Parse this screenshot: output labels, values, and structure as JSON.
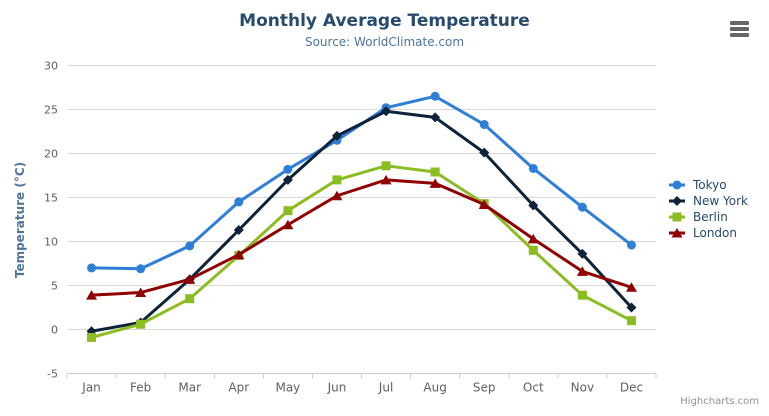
{
  "header": {
    "title": "Monthly Average Temperature",
    "subtitle": "Source: WorldClimate.com"
  },
  "toolbar": {
    "menu_icon": "hamburger-menu"
  },
  "footer": {
    "credit": "Highcharts.com"
  },
  "colors": {
    "title": "#274b6d",
    "subtitle": "#4d759e",
    "y_axis_title": "#4d759e",
    "axis_labels": "#606060",
    "grid_line": "#d8d8d8",
    "axis_line": "#c0d0e0",
    "legend_text": "#274b6d",
    "credit_text": "#909090",
    "menu_icon": "#666666",
    "background": "#ffffff"
  },
  "chart_data": {
    "type": "line",
    "title": "Monthly Average Temperature",
    "subtitle": "Source: WorldClimate.com",
    "xlabel": "",
    "ylabel": "Temperature (°C)",
    "categories": [
      "Jan",
      "Feb",
      "Mar",
      "Apr",
      "May",
      "Jun",
      "Jul",
      "Aug",
      "Sep",
      "Oct",
      "Nov",
      "Dec"
    ],
    "series": [
      {
        "name": "Tokyo",
        "color": "#2f7ed8",
        "marker": "circle",
        "values": [
          7.0,
          6.9,
          9.5,
          14.5,
          18.2,
          21.5,
          25.2,
          26.5,
          23.3,
          18.3,
          13.9,
          9.6
        ]
      },
      {
        "name": "New York",
        "color": "#0d233a",
        "marker": "diamond",
        "values": [
          -0.2,
          0.8,
          5.7,
          11.3,
          17.0,
          22.0,
          24.8,
          24.1,
          20.1,
          14.1,
          8.6,
          2.5
        ]
      },
      {
        "name": "Berlin",
        "color": "#8bbc21",
        "marker": "square",
        "values": [
          -0.9,
          0.6,
          3.5,
          8.4,
          13.5,
          17.0,
          18.6,
          17.9,
          14.3,
          9.0,
          3.9,
          1.0
        ]
      },
      {
        "name": "London",
        "color": "#910000",
        "marker": "triangle",
        "values": [
          3.9,
          4.2,
          5.7,
          8.5,
          11.9,
          15.2,
          17.0,
          16.6,
          14.2,
          10.3,
          6.6,
          4.8
        ]
      }
    ],
    "ylim": [
      -5,
      30
    ],
    "ytick_step": 5,
    "grid": true,
    "legend_position": "middle-right"
  }
}
